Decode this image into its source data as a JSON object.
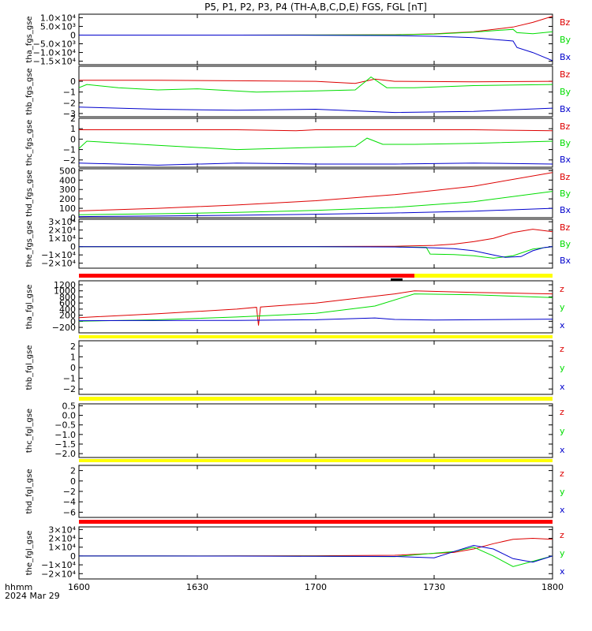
{
  "title": "P5, P1, P2, P3, P4 (TH-A,B,C,D,E) FGS, FGL [nT]",
  "time_axis": {
    "unit_label": "hhmm",
    "date_label": "2024 Mar 29",
    "range": [
      "1600",
      "1800"
    ],
    "ticks": [
      "1600",
      "1630",
      "1700",
      "1730",
      "1800"
    ]
  },
  "colors": {
    "x": "#0000cc",
    "y": "#00dd00",
    "z": "#dd0000",
    "bar_red": "#ff0000",
    "bar_yellow": "#ffff00",
    "bar_black": "#000000"
  },
  "status_bars": [
    {
      "name": "status-bar-tha",
      "segments": [
        {
          "from": "1600",
          "to": "1725",
          "color": "red"
        },
        {
          "from": "1725",
          "to": "1800",
          "color": "yellow"
        }
      ],
      "marker": {
        "from": "1719",
        "to": "1722"
      }
    },
    {
      "name": "status-bar-thb",
      "segments": [
        {
          "from": "1600",
          "to": "1800",
          "color": "yellow"
        }
      ]
    },
    {
      "name": "status-bar-thc",
      "segments": [
        {
          "from": "1600",
          "to": "1800",
          "color": "yellow"
        }
      ]
    },
    {
      "name": "status-bar-thd",
      "segments": [
        {
          "from": "1600",
          "to": "1800",
          "color": "yellow"
        }
      ]
    },
    {
      "name": "status-bar-the",
      "segments": [
        {
          "from": "1600",
          "to": "1800",
          "color": "red"
        }
      ]
    }
  ],
  "chart_data": [
    {
      "type": "line",
      "ylabel": "tha_fgs_gse",
      "ylim": [
        -17000,
        12000
      ],
      "yticks": [
        "1.0×10⁴",
        "5.0×10³",
        "0",
        "−5.0×10³",
        "−1.0×10⁴",
        "−1.5×10⁴"
      ],
      "ytick_values": [
        10000,
        5000,
        0,
        -5000,
        -10000,
        -15000
      ],
      "legend": [
        "Bz",
        "By",
        "Bx"
      ],
      "series": [
        {
          "name": "Bz",
          "x": [
            0,
            20,
            40,
            60,
            80,
            90,
            100,
            110,
            115,
            120
          ],
          "values": [
            0,
            0,
            10,
            50,
            200,
            700,
            1900,
            4600,
            7300,
            10800
          ]
        },
        {
          "name": "By",
          "x": [
            0,
            20,
            40,
            60,
            80,
            90,
            100,
            110,
            111,
            115,
            120
          ],
          "values": [
            0,
            0,
            10,
            40,
            150,
            600,
            1700,
            3300,
            1400,
            800,
            1900
          ]
        },
        {
          "name": "Bx",
          "x": [
            0,
            20,
            40,
            60,
            80,
            90,
            100,
            110,
            111,
            115,
            120
          ],
          "values": [
            0,
            0,
            -10,
            -100,
            -300,
            -700,
            -1500,
            -3400,
            -7100,
            -10000,
            -14700
          ]
        }
      ]
    },
    {
      "type": "line",
      "ylabel": "thb_fgs_gse",
      "ylim": [
        -3.3,
        1.4
      ],
      "yticks": [
        "0",
        "−1",
        "−2",
        "−3"
      ],
      "ytick_values": [
        0,
        -1,
        -2,
        -3
      ],
      "legend": [
        "Bz",
        "By",
        "Bx"
      ],
      "series": [
        {
          "name": "Bz",
          "x": [
            0,
            20,
            40,
            60,
            70,
            75,
            80,
            100,
            120
          ],
          "values": [
            0.1,
            0.1,
            0.05,
            0.0,
            -0.2,
            0.2,
            0.0,
            -0.05,
            0.0
          ]
        },
        {
          "name": "By",
          "x": [
            0,
            2,
            10,
            20,
            30,
            45,
            60,
            70,
            74,
            78,
            85,
            100,
            120
          ],
          "values": [
            -0.6,
            -0.3,
            -0.6,
            -0.8,
            -0.7,
            -1.0,
            -0.9,
            -0.8,
            0.4,
            -0.6,
            -0.6,
            -0.4,
            -0.3
          ]
        },
        {
          "name": "Bx",
          "x": [
            0,
            20,
            40,
            60,
            80,
            100,
            120
          ],
          "values": [
            -2.4,
            -2.6,
            -2.7,
            -2.6,
            -2.9,
            -2.8,
            -2.5
          ]
        }
      ]
    },
    {
      "type": "line",
      "ylabel": "thc_fgs_gse",
      "ylim": [
        -2.7,
        2.0
      ],
      "yticks": [
        "2",
        "1",
        "0",
        "−1",
        "−2"
      ],
      "ytick_values": [
        2,
        1,
        0,
        -1,
        -2
      ],
      "legend": [
        "Bz",
        "By",
        "Bx"
      ],
      "series": [
        {
          "name": "Bz",
          "x": [
            0,
            20,
            40,
            55,
            60,
            80,
            100,
            120
          ],
          "values": [
            0.9,
            0.9,
            0.9,
            0.8,
            0.9,
            0.9,
            0.9,
            0.8
          ]
        },
        {
          "name": "By",
          "x": [
            0,
            2,
            20,
            40,
            60,
            70,
            73,
            77,
            85,
            100,
            120
          ],
          "values": [
            -0.9,
            -0.2,
            -0.6,
            -1.0,
            -0.8,
            -0.7,
            0.1,
            -0.5,
            -0.5,
            -0.4,
            -0.2
          ]
        },
        {
          "name": "Bx",
          "x": [
            0,
            20,
            40,
            60,
            80,
            100,
            120
          ],
          "values": [
            -2.3,
            -2.5,
            -2.3,
            -2.4,
            -2.4,
            -2.3,
            -2.4
          ]
        }
      ]
    },
    {
      "type": "line",
      "ylabel": "thd_fgs_gse",
      "ylim": [
        0,
        520
      ],
      "yticks": [
        "500",
        "400",
        "300",
        "200",
        "100",
        "0"
      ],
      "ytick_values": [
        500,
        400,
        300,
        200,
        100,
        0
      ],
      "legend": [
        "Bz",
        "By",
        "Bx"
      ],
      "series": [
        {
          "name": "Bz",
          "x": [
            0,
            20,
            40,
            60,
            80,
            100,
            120
          ],
          "values": [
            72,
            100,
            135,
            180,
            245,
            335,
            480
          ]
        },
        {
          "name": "By",
          "x": [
            0,
            20,
            40,
            60,
            80,
            100,
            120
          ],
          "values": [
            32,
            42,
            56,
            77,
            110,
            170,
            280
          ]
        },
        {
          "name": "Bx",
          "x": [
            0,
            20,
            40,
            60,
            80,
            100,
            120
          ],
          "values": [
            12,
            18,
            26,
            37,
            50,
            70,
            100
          ]
        }
      ]
    },
    {
      "type": "line",
      "ylabel": "the_fgs_gse",
      "ylim": [
        -26000,
        33000
      ],
      "yticks": [
        "3×10⁴",
        "2×10⁴",
        "1×10⁴",
        "0",
        "−1×10⁴",
        "−2×10⁴"
      ],
      "ytick_values": [
        30000,
        20000,
        10000,
        0,
        -10000,
        -20000
      ],
      "legend": [
        "Bz",
        "By",
        "Bx"
      ],
      "series": [
        {
          "name": "Bz",
          "x": [
            0,
            40,
            60,
            80,
            90,
            95,
            100,
            105,
            110,
            115,
            120
          ],
          "values": [
            0,
            0,
            200,
            500,
            1500,
            3000,
            6000,
            10000,
            17000,
            21000,
            18000
          ]
        },
        {
          "name": "By",
          "x": [
            0,
            40,
            60,
            80,
            88,
            89,
            95,
            100,
            105,
            110,
            115,
            120
          ],
          "values": [
            0,
            0,
            -100,
            -300,
            -800,
            -9000,
            -9500,
            -11000,
            -14000,
            -11000,
            -3000,
            0
          ]
        },
        {
          "name": "Bx",
          "x": [
            0,
            40,
            60,
            80,
            90,
            95,
            100,
            105,
            108,
            112,
            115,
            118,
            120
          ],
          "values": [
            0,
            0,
            -100,
            -400,
            -1500,
            -2500,
            -5000,
            -10000,
            -13000,
            -12000,
            -5000,
            -1000,
            0
          ]
        }
      ]
    },
    {
      "type": "line",
      "ylabel": "tha_fgl_gse",
      "ylim": [
        -380,
        1330
      ],
      "yticks": [
        "1200",
        "1000",
        "800",
        "600",
        "400",
        "200",
        "0",
        "−200"
      ],
      "ytick_values": [
        1200,
        1000,
        800,
        600,
        400,
        200,
        0,
        -200
      ],
      "legend": [
        "z",
        "y",
        "x"
      ],
      "series": [
        {
          "name": "z",
          "x": [
            0,
            20,
            40,
            45,
            45.5,
            46,
            60,
            80,
            85,
            100,
            120
          ],
          "values": [
            120,
            250,
            400,
            460,
            -140,
            470,
            600,
            900,
            1000,
            950,
            900
          ]
        },
        {
          "name": "y",
          "x": [
            0,
            20,
            40,
            60,
            75,
            85,
            100,
            120
          ],
          "values": [
            0,
            50,
            140,
            260,
            500,
            900,
            870,
            780
          ]
        },
        {
          "name": "x",
          "x": [
            0,
            40,
            60,
            75,
            80,
            90,
            120
          ],
          "values": [
            20,
            30,
            50,
            110,
            60,
            40,
            70
          ]
        }
      ]
    },
    {
      "type": "line",
      "ylabel": "thb_fgl_gse",
      "ylim": [
        -2.5,
        2.5
      ],
      "yticks": [
        "2",
        "1",
        "0",
        "−1",
        "−2"
      ],
      "ytick_values": [
        2,
        1,
        0,
        -1,
        -2
      ],
      "legend": [
        "z",
        "y",
        "x"
      ],
      "series": []
    },
    {
      "type": "line",
      "ylabel": "thc_fgl_gse",
      "ylim": [
        -2.2,
        0.6
      ],
      "yticks": [
        "0.5",
        "0.0",
        "−0.5",
        "−1.0",
        "−1.5",
        "−2.0"
      ],
      "ytick_values": [
        0.5,
        0.0,
        -0.5,
        -1.0,
        -1.5,
        -2.0
      ],
      "legend": [
        "z",
        "y",
        "x"
      ],
      "series": []
    },
    {
      "type": "line",
      "ylabel": "thd_fgl_gse",
      "ylim": [
        -7,
        3
      ],
      "yticks": [
        "2",
        "0",
        "−2",
        "−4",
        "−6"
      ],
      "ytick_values": [
        2,
        0,
        -2,
        -4,
        -6
      ],
      "legend": [
        "z",
        "y",
        "x"
      ],
      "series": []
    },
    {
      "type": "line",
      "ylabel": "the_fgl_gse",
      "ylim": [
        -26000,
        33000
      ],
      "yticks": [
        "3×10⁴",
        "2×10⁴",
        "1×10⁴",
        "0",
        "−1×10⁴",
        "−2×10⁴"
      ],
      "ytick_values": [
        30000,
        20000,
        10000,
        0,
        -10000,
        -20000
      ],
      "legend": [
        "z",
        "y",
        "x"
      ],
      "series": [
        {
          "name": "z",
          "x": [
            0,
            20,
            40,
            60,
            80,
            95,
            100,
            105,
            110,
            115,
            120
          ],
          "values": [
            0,
            0,
            100,
            300,
            800,
            4000,
            8000,
            14000,
            19000,
            20000,
            19000
          ]
        },
        {
          "name": "y",
          "x": [
            0,
            20,
            40,
            60,
            80,
            95,
            100,
            105,
            110,
            115,
            120
          ],
          "values": [
            0,
            0,
            0,
            -200,
            -700,
            5000,
            10000,
            0,
            -12000,
            -6000,
            0
          ]
        },
        {
          "name": "x",
          "x": [
            0,
            20,
            40,
            60,
            80,
            90,
            95,
            100,
            105,
            110,
            115,
            120
          ],
          "values": [
            0,
            0,
            -100,
            -300,
            -500,
            -2000,
            5000,
            12000,
            8000,
            -3000,
            -7000,
            0
          ]
        }
      ]
    }
  ]
}
